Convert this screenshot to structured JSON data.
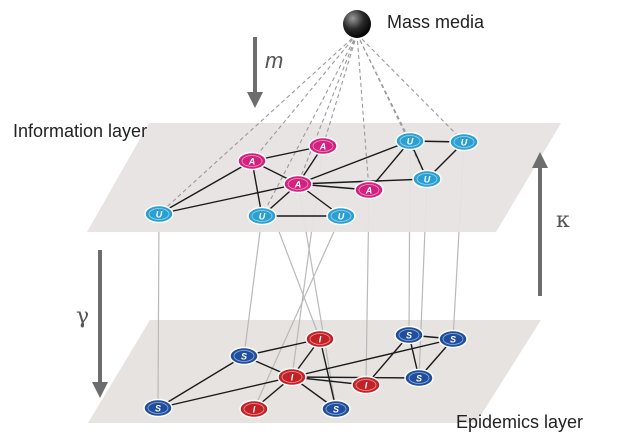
{
  "labels": {
    "mass_media": "Mass media",
    "information_layer": "Information layer",
    "epidemics_layer": "Epidemics layer",
    "m": "m",
    "kappa": "κ",
    "gamma": "γ"
  },
  "colors": {
    "plane": "#e6e3e1",
    "aware": "#d4217f",
    "unaware": "#2a9fd2",
    "infected": "#c32125",
    "susceptible": "#1f4e9e",
    "arrow": "#6d6d6d",
    "edge": "#1a1a1a",
    "dashed": "#9a9a9a",
    "vertical": "#b9b9b9"
  },
  "info_nodes": [
    {
      "id": "i1",
      "letter": "A",
      "state": "aware"
    },
    {
      "id": "i2",
      "letter": "A",
      "state": "aware"
    },
    {
      "id": "i3",
      "letter": "A",
      "state": "aware"
    },
    {
      "id": "i4",
      "letter": "A",
      "state": "aware"
    },
    {
      "id": "i5",
      "letter": "U",
      "state": "unaware"
    },
    {
      "id": "i6",
      "letter": "U",
      "state": "unaware"
    },
    {
      "id": "i7",
      "letter": "U",
      "state": "unaware"
    },
    {
      "id": "i8",
      "letter": "U",
      "state": "unaware"
    },
    {
      "id": "i9",
      "letter": "U",
      "state": "unaware"
    },
    {
      "id": "i10",
      "letter": "U",
      "state": "unaware"
    }
  ],
  "info_edges": [
    [
      "i5",
      "i1"
    ],
    [
      "i5",
      "i3"
    ],
    [
      "i1",
      "i2"
    ],
    [
      "i1",
      "i3"
    ],
    [
      "i1",
      "i7"
    ],
    [
      "i2",
      "i3"
    ],
    [
      "i3",
      "i7"
    ],
    [
      "i3",
      "i8"
    ],
    [
      "i3",
      "i4"
    ],
    [
      "i3",
      "i9"
    ],
    [
      "i3",
      "i6"
    ],
    [
      "i7",
      "i8"
    ],
    [
      "i4",
      "i9"
    ],
    [
      "i6",
      "i10"
    ],
    [
      "i6",
      "i9"
    ],
    [
      "i10",
      "i9"
    ]
  ],
  "epi_nodes": [
    {
      "id": "e1",
      "letter": "S",
      "state": "susceptible"
    },
    {
      "id": "e2",
      "letter": "I",
      "state": "infected"
    },
    {
      "id": "e3",
      "letter": "I",
      "state": "infected"
    },
    {
      "id": "e4",
      "letter": "S",
      "state": "susceptible"
    },
    {
      "id": "e5",
      "letter": "S",
      "state": "susceptible"
    },
    {
      "id": "e6",
      "letter": "I",
      "state": "infected"
    },
    {
      "id": "e7",
      "letter": "I",
      "state": "infected"
    },
    {
      "id": "e8",
      "letter": "S",
      "state": "susceptible"
    },
    {
      "id": "e9",
      "letter": "S",
      "state": "susceptible"
    },
    {
      "id": "e10",
      "letter": "S",
      "state": "susceptible"
    }
  ],
  "epi_edges": [
    [
      "e1",
      "e2"
    ],
    [
      "e1",
      "e3"
    ],
    [
      "e1",
      "e9"
    ],
    [
      "e2",
      "e3"
    ],
    [
      "e3",
      "e9"
    ],
    [
      "e3",
      "e7"
    ],
    [
      "e3",
      "e10"
    ],
    [
      "e3",
      "e6"
    ],
    [
      "e3",
      "e4"
    ],
    [
      "e3",
      "e5"
    ],
    [
      "e4",
      "e5"
    ],
    [
      "e4",
      "e8"
    ],
    [
      "e5",
      "e8"
    ],
    [
      "e6",
      "e8"
    ],
    [
      "e2",
      "e10"
    ]
  ],
  "media_links": [
    "i1",
    "i2",
    "i3",
    "i4",
    "i5",
    "i6",
    "i7",
    "i9",
    "i10"
  ],
  "layer_links": [
    [
      "i5",
      "e9"
    ],
    [
      "i7",
      "e1"
    ],
    [
      "i8",
      "e7"
    ],
    [
      "i1",
      "e2"
    ],
    [
      "i2",
      "e3"
    ],
    [
      "i3",
      "e10"
    ],
    [
      "i4",
      "e6"
    ],
    [
      "i6",
      "e4"
    ],
    [
      "i9",
      "e8"
    ],
    [
      "i10",
      "e5"
    ]
  ]
}
